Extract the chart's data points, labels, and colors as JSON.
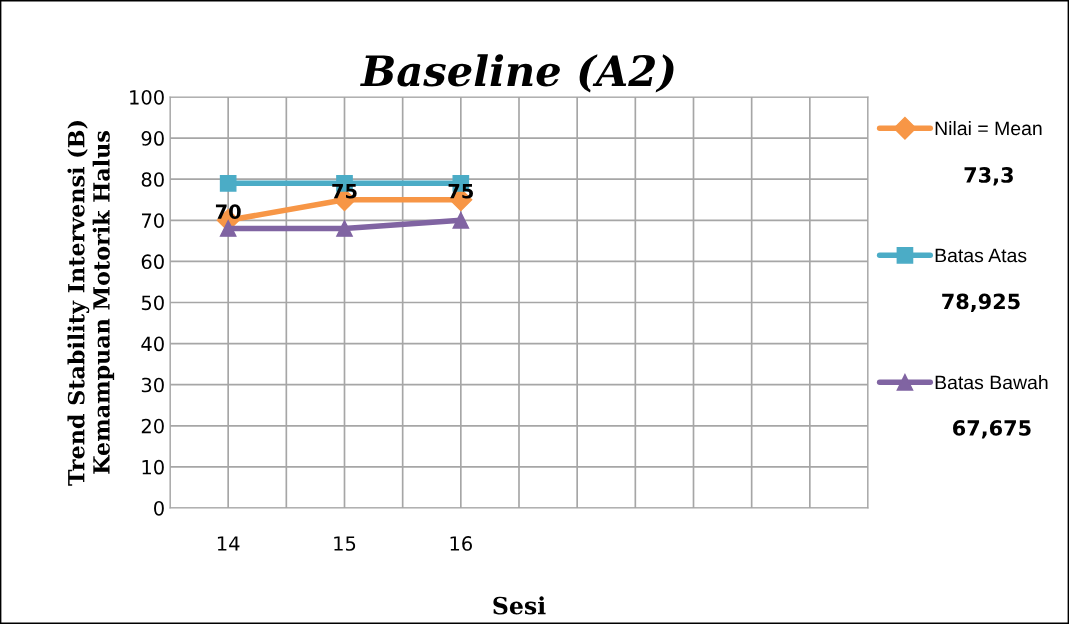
{
  "chart_data": {
    "type": "line",
    "title": "Baseline (A2)",
    "xlabel": "Sesi",
    "ylabel": "Trend Stability Intervensi (B)\nKemampuan Motorik Halus",
    "categories": [
      "14",
      "15",
      "16",
      null,
      null,
      null
    ],
    "series": [
      {
        "name": "Nilai = Mean",
        "color": "#f79646",
        "marker": "diamond",
        "values": [
          70,
          75,
          75,
          null,
          null,
          null
        ],
        "value_labels": [
          "70",
          "75",
          "75",
          null,
          null,
          null
        ]
      },
      {
        "name": "Batas Atas",
        "color": "#4bacc6",
        "marker": "square",
        "values": [
          79,
          79,
          79,
          null,
          null,
          null
        ]
      },
      {
        "name": "Batas Bawah",
        "color": "#8064a2",
        "marker": "triangle",
        "values": [
          68,
          68,
          70,
          null,
          null,
          null
        ]
      }
    ],
    "annotations": [
      "73,3",
      "78,925",
      "67,675"
    ],
    "ylim": [
      0,
      100
    ],
    "yticks": [
      0,
      10,
      20,
      30,
      40,
      50,
      60,
      70,
      80,
      90,
      100
    ],
    "grid": true,
    "legend": "right",
    "line_style": "solid"
  }
}
